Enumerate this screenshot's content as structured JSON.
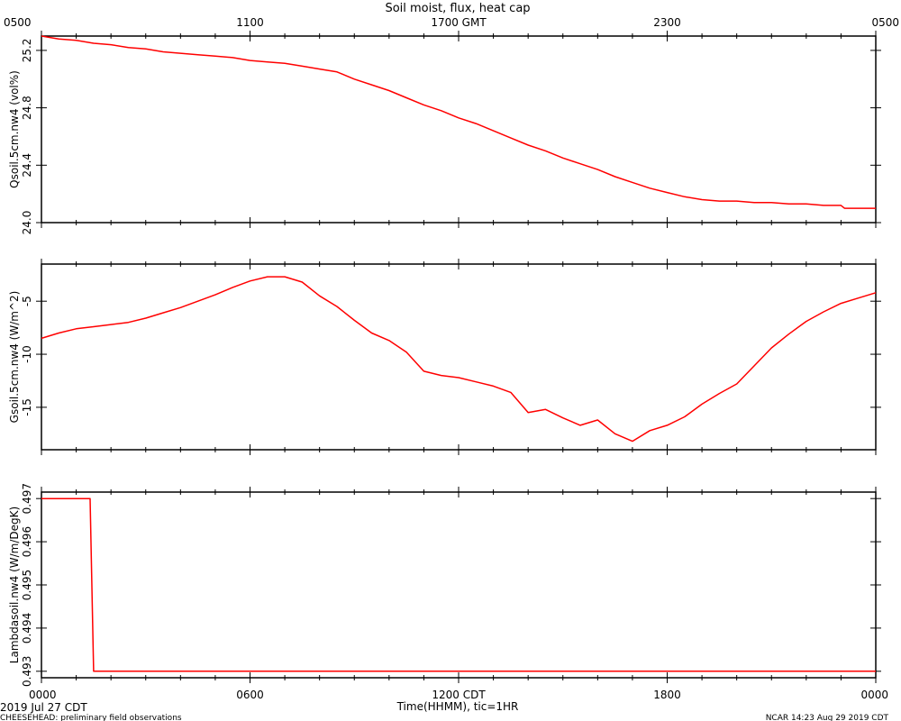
{
  "header": {
    "title": "Soil moist, flux, heat cap"
  },
  "footer": {
    "start_date": "2019 Jul 27 CDT",
    "project_note": "CHEESEHEAD: preliminary field observations",
    "time_axis_label": "Time(HHMM), tic=1HR",
    "credit": "NCAR 14:23 Aug 29 2019 CDT"
  },
  "top_axis": {
    "ticks": [
      {
        "hour": 0,
        "label": "0500"
      },
      {
        "hour": 6,
        "label": "1100"
      },
      {
        "hour": 12,
        "label": "1700 GMT"
      },
      {
        "hour": 18,
        "label": "2300"
      },
      {
        "hour": 24,
        "label": "0500"
      }
    ]
  },
  "bottom_axis": {
    "ticks": [
      {
        "hour": 0,
        "label": "0000"
      },
      {
        "hour": 6,
        "label": "0600"
      },
      {
        "hour": 12,
        "label": "1200 CDT"
      },
      {
        "hour": 18,
        "label": "1800"
      },
      {
        "hour": 24,
        "label": "0000"
      }
    ]
  },
  "colors": {
    "series": "#ff0000",
    "frame": "#000000"
  },
  "chart_data": [
    {
      "type": "line",
      "ylabel": "Qsoil.5cm.nw4 (vol%)",
      "xlim": [
        0,
        24
      ],
      "ylim": [
        24.0,
        25.3
      ],
      "yticks": [
        {
          "value": 24.0,
          "label": "24.0"
        },
        {
          "value": 24.4,
          "label": "24.4"
        },
        {
          "value": 24.8,
          "label": "24.8"
        },
        {
          "value": 25.2,
          "label": "25.2"
        }
      ],
      "x": [
        0,
        0.5,
        1,
        1.5,
        2,
        2.5,
        3,
        3.5,
        4,
        4.5,
        5,
        5.5,
        6,
        6.5,
        7,
        7.5,
        8,
        8.5,
        9,
        9.5,
        10,
        10.5,
        11,
        11.5,
        12,
        12.5,
        13,
        13.5,
        14,
        14.5,
        15,
        15.5,
        16,
        16.5,
        17,
        17.5,
        18,
        18.5,
        19,
        19.5,
        20,
        20.5,
        21,
        21.5,
        22,
        22.5,
        23,
        23.1,
        23.5,
        24
      ],
      "y": [
        25.3,
        25.28,
        25.27,
        25.25,
        25.24,
        25.22,
        25.21,
        25.19,
        25.18,
        25.17,
        25.16,
        25.15,
        25.13,
        25.12,
        25.11,
        25.09,
        25.07,
        25.05,
        25.0,
        24.96,
        24.92,
        24.87,
        24.82,
        24.78,
        24.73,
        24.69,
        24.64,
        24.59,
        24.54,
        24.5,
        24.45,
        24.41,
        24.37,
        24.32,
        24.28,
        24.24,
        24.21,
        24.18,
        24.16,
        24.15,
        24.15,
        24.14,
        24.14,
        24.13,
        24.13,
        24.12,
        24.12,
        24.1,
        24.1,
        24.1
      ]
    },
    {
      "type": "line",
      "ylabel": "Gsoil.5cm.nw4 (W/m^2)",
      "xlim": [
        0,
        24
      ],
      "ylim": [
        -19,
        -1.5
      ],
      "yticks": [
        {
          "value": -15,
          "label": "-15"
        },
        {
          "value": -10,
          "label": "-10"
        },
        {
          "value": -5,
          "label": "-5"
        }
      ],
      "x": [
        0,
        0.5,
        1,
        1.5,
        2,
        2.5,
        3,
        3.5,
        4,
        4.5,
        5,
        5.5,
        6,
        6.5,
        7,
        7.5,
        8,
        8.5,
        9,
        9.5,
        10,
        10.5,
        11,
        11.5,
        12,
        12.5,
        13,
        13.5,
        14,
        14.5,
        15,
        15.5,
        16,
        16.5,
        17,
        17.5,
        18,
        18.5,
        19,
        19.5,
        20,
        20.5,
        21,
        21.5,
        22,
        22.5,
        23,
        23.5,
        24
      ],
      "y": [
        -8.5,
        -8.0,
        -7.6,
        -7.4,
        -7.2,
        -7.0,
        -6.6,
        -6.1,
        -5.6,
        -5.0,
        -4.4,
        -3.7,
        -3.1,
        -2.7,
        -2.7,
        -3.2,
        -4.5,
        -5.5,
        -6.8,
        -8.0,
        -8.7,
        -9.8,
        -11.6,
        -12.0,
        -12.2,
        -12.6,
        -13.0,
        -13.6,
        -15.5,
        -15.2,
        -16.0,
        -16.7,
        -16.2,
        -17.5,
        -18.2,
        -17.2,
        -16.7,
        -15.9,
        -14.7,
        -13.7,
        -12.8,
        -11.1,
        -9.4,
        -8.1,
        -6.9,
        -6.0,
        -5.2,
        -4.7,
        -4.2
      ]
    },
    {
      "type": "line",
      "ylabel": "Lambdasoil.nw4 (W/m/DegK)",
      "xlim": [
        0,
        24
      ],
      "ylim": [
        0.49285,
        0.49715
      ],
      "yticks": [
        {
          "value": 0.493,
          "label": "0.493"
        },
        {
          "value": 0.494,
          "label": "0.494"
        },
        {
          "value": 0.495,
          "label": "0.495"
        },
        {
          "value": 0.496,
          "label": "0.496"
        },
        {
          "value": 0.497,
          "label": "0.497"
        }
      ],
      "x": [
        0,
        1.4,
        1.5,
        24
      ],
      "y": [
        0.497,
        0.497,
        0.493,
        0.493
      ]
    }
  ]
}
